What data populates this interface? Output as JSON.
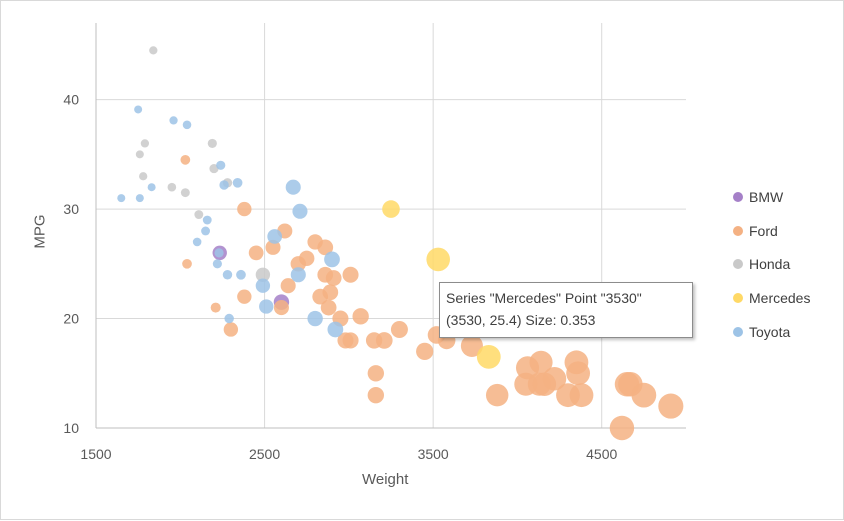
{
  "chart_data": {
    "type": "scatter",
    "subtype": "bubble",
    "xlabel": "Weight",
    "ylabel": "MPG",
    "xlim": [
      1500,
      5000
    ],
    "ylim": [
      10,
      47
    ],
    "xticks": [
      1500,
      2500,
      3500,
      4500
    ],
    "yticks": [
      10,
      20,
      30,
      40
    ],
    "x_tick_labels": [
      "1500",
      "2500",
      "3500",
      "4500"
    ],
    "y_tick_labels": [
      "10",
      "20",
      "30",
      "40"
    ],
    "grid": true,
    "legend_position": "right",
    "series": [
      {
        "name": "BMW",
        "color": "#a580c8",
        "points": [
          [
            2234,
            26.0,
            0.2
          ],
          [
            2600,
            21.5,
            0.23
          ]
        ]
      },
      {
        "name": "Ford",
        "color": "#f4b183",
        "points": [
          [
            2040,
            25,
            0.18
          ],
          [
            2030,
            34.5,
            0.18
          ],
          [
            2210,
            21,
            0.19
          ],
          [
            2300,
            19,
            0.2
          ],
          [
            2380,
            30,
            0.2
          ],
          [
            2380,
            22,
            0.2
          ],
          [
            2450,
            26,
            0.21
          ],
          [
            2550,
            26.5,
            0.22
          ],
          [
            2600,
            21,
            0.22
          ],
          [
            2620,
            28,
            0.22
          ],
          [
            2640,
            23,
            0.22
          ],
          [
            2700,
            25,
            0.23
          ],
          [
            2750,
            25.5,
            0.23
          ],
          [
            2800,
            27,
            0.23
          ],
          [
            2830,
            22,
            0.24
          ],
          [
            2860,
            24,
            0.24
          ],
          [
            2860,
            26.5,
            0.24
          ],
          [
            2880,
            21,
            0.24
          ],
          [
            2890,
            22.4,
            0.24
          ],
          [
            2910,
            23.7,
            0.24
          ],
          [
            2950,
            20,
            0.25
          ],
          [
            2980,
            18,
            0.25
          ],
          [
            3010,
            24,
            0.25
          ],
          [
            3010,
            18,
            0.25
          ],
          [
            3070,
            20.2,
            0.26
          ],
          [
            3150,
            18,
            0.26
          ],
          [
            3160,
            15,
            0.26
          ],
          [
            3160,
            13,
            0.26
          ],
          [
            3210,
            18,
            0.27
          ],
          [
            3300,
            19,
            0.28
          ],
          [
            3450,
            17,
            0.29
          ],
          [
            3520,
            18.5,
            0.3
          ],
          [
            3580,
            18,
            0.3
          ],
          [
            3730,
            17.5,
            0.31
          ],
          [
            3880,
            13,
            0.32
          ],
          [
            4050,
            14,
            0.34
          ],
          [
            4060,
            15.5,
            0.34
          ],
          [
            4130,
            14,
            0.34
          ],
          [
            4140,
            16,
            0.34
          ],
          [
            4160,
            14,
            0.35
          ],
          [
            4220,
            14.5,
            0.35
          ],
          [
            4300,
            13,
            0.36
          ],
          [
            4350,
            16,
            0.36
          ],
          [
            4360,
            15,
            0.36
          ],
          [
            4380,
            13,
            0.36
          ],
          [
            4620,
            10,
            0.38
          ],
          [
            4650,
            14,
            0.38
          ],
          [
            4670,
            14,
            0.38
          ],
          [
            4750,
            13,
            0.39
          ],
          [
            4910,
            12,
            0.4
          ]
        ]
      },
      {
        "name": "Honda",
        "color": "#c9c9c9",
        "points": [
          [
            1760,
            35,
            0.12
          ],
          [
            1790,
            36,
            0.13
          ],
          [
            1780,
            33,
            0.13
          ],
          [
            1840,
            44.5,
            0.13
          ],
          [
            1950,
            32,
            0.14
          ],
          [
            2030,
            31.5,
            0.15
          ],
          [
            2110,
            29.5,
            0.15
          ],
          [
            2190,
            36,
            0.16
          ],
          [
            2200,
            33.7,
            0.16
          ],
          [
            2280,
            32.4,
            0.17
          ],
          [
            2490,
            24,
            0.2
          ]
        ]
      },
      {
        "name": "Mercedes",
        "color": "#ffd966",
        "points": [
          [
            3250,
            30,
            0.3
          ],
          [
            3530,
            25.4,
            0.353
          ],
          [
            3830,
            16.5,
            0.36
          ]
        ]
      },
      {
        "name": "Toyota",
        "color": "#9dc3e6",
        "points": [
          [
            1650,
            31,
            0.11
          ],
          [
            1750,
            39.1,
            0.12
          ],
          [
            1760,
            31,
            0.12
          ],
          [
            1830,
            32,
            0.12
          ],
          [
            1960,
            38.1,
            0.13
          ],
          [
            2040,
            37.7,
            0.14
          ],
          [
            2100,
            27,
            0.14
          ],
          [
            2150,
            28,
            0.15
          ],
          [
            2160,
            29,
            0.15
          ],
          [
            2220,
            25,
            0.16
          ],
          [
            2230,
            26,
            0.16
          ],
          [
            2240,
            34,
            0.16
          ],
          [
            2260,
            32.2,
            0.17
          ],
          [
            2280,
            24,
            0.17
          ],
          [
            2290,
            20,
            0.17
          ],
          [
            2340,
            32.4,
            0.18
          ],
          [
            2360,
            24,
            0.18
          ],
          [
            2490,
            23,
            0.2
          ],
          [
            2510,
            21.1,
            0.2
          ],
          [
            2560,
            27.5,
            0.21
          ],
          [
            2670,
            32,
            0.22
          ],
          [
            2700,
            24,
            0.22
          ],
          [
            2710,
            29.8,
            0.22
          ],
          [
            2800,
            20,
            0.23
          ],
          [
            2900,
            25.4,
            0.24
          ],
          [
            2920,
            19,
            0.24
          ]
        ]
      }
    ]
  },
  "legend": {
    "items": [
      {
        "label": "BMW",
        "color": "#a580c8"
      },
      {
        "label": "Ford",
        "color": "#f4b183"
      },
      {
        "label": "Honda",
        "color": "#c9c9c9"
      },
      {
        "label": "Mercedes",
        "color": "#ffd966"
      },
      {
        "label": "Toyota",
        "color": "#9dc3e6"
      }
    ]
  },
  "tooltip": {
    "line1": "Series \"Mercedes\" Point \"3530\"",
    "line2": "(3530, 25.4) Size: 0.353"
  }
}
